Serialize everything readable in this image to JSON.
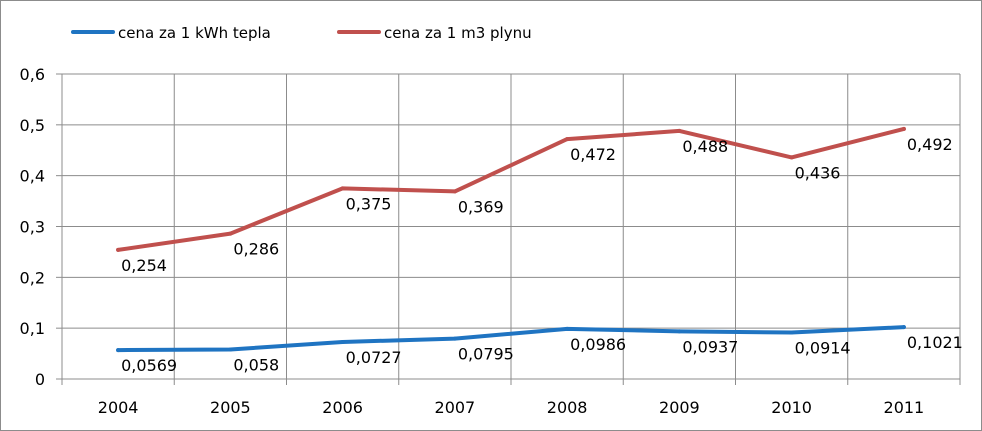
{
  "chart_data": {
    "type": "line",
    "title": "",
    "xlabel": "",
    "ylabel": "",
    "categories": [
      "2004",
      "2005",
      "2006",
      "2007",
      "2008",
      "2009",
      "2010",
      "2011"
    ],
    "ylim": [
      0,
      0.6
    ],
    "yticks": [
      "0",
      "0,1",
      "0,2",
      "0,3",
      "0,4",
      "0,5",
      "0,6"
    ],
    "grid": true,
    "legend_position": "top-left",
    "series": [
      {
        "name": "cena za 1 kWh tepla",
        "color": "#1f74c2",
        "values": [
          0.0569,
          0.058,
          0.0727,
          0.0795,
          0.0986,
          0.0937,
          0.0914,
          0.1021
        ],
        "labels": [
          "0,0569",
          "0,058",
          "0,0727",
          "0,0795",
          "0,0986",
          "0,0937",
          "0,0914",
          "0,1021"
        ]
      },
      {
        "name": "cena za 1 m3 plynu",
        "color": "#c0504d",
        "values": [
          0.254,
          0.286,
          0.375,
          0.369,
          0.472,
          0.488,
          0.436,
          0.492
        ],
        "labels": [
          "0,254",
          "0,286",
          "0,375",
          "0,369",
          "0,472",
          "0,488",
          "0,436",
          "0,492"
        ]
      }
    ]
  }
}
